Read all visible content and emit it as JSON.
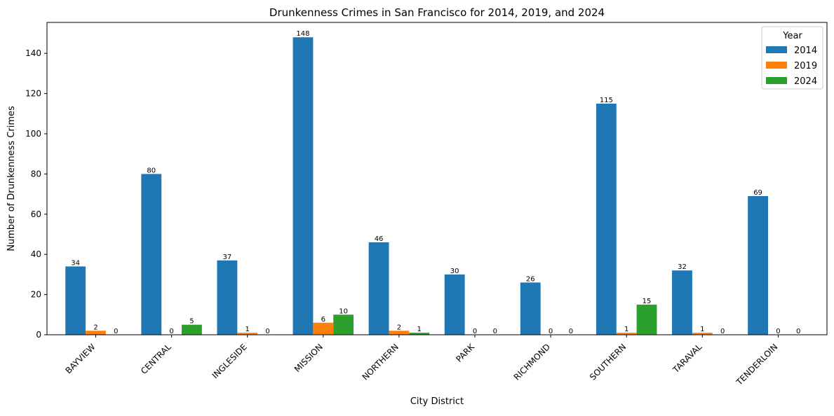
{
  "chart_data": {
    "type": "bar",
    "title": "Drunkenness Crimes in San Francisco for 2014, 2019, and 2024",
    "xlabel": "City District",
    "ylabel": "Number of Drunkenness Crimes",
    "ylim": [
      0,
      155.4
    ],
    "yticks": [
      0,
      20,
      40,
      60,
      80,
      100,
      120,
      140
    ],
    "categories": [
      "BAYVIEW",
      "CENTRAL",
      "INGLESIDE",
      "MISSION",
      "NORTHERN",
      "PARK",
      "RICHMOND",
      "SOUTHERN",
      "TARAVAL",
      "TENDERLOIN"
    ],
    "legend": {
      "title": "Year",
      "placement": "top-right"
    },
    "grid": false,
    "series": [
      {
        "name": "2014",
        "color": "#1f77b4",
        "values": [
          34,
          80,
          37,
          148,
          46,
          30,
          26,
          115,
          32,
          69
        ],
        "labels": [
          "34",
          "80",
          "37",
          "148",
          "46",
          "30",
          "26",
          "115",
          "32",
          "69"
        ]
      },
      {
        "name": "2019",
        "color": "#ff7f0e",
        "values": [
          2,
          0,
          1,
          6,
          2,
          0,
          0,
          1,
          1,
          0
        ],
        "labels": [
          "2",
          "0",
          "1",
          "6",
          "2",
          "0",
          "0",
          "1",
          "1",
          "0"
        ]
      },
      {
        "name": "2024",
        "color": "#2ca02c",
        "values": [
          0,
          5,
          0,
          10,
          1,
          0,
          0,
          15,
          0,
          0
        ],
        "labels": [
          "0",
          "5",
          "0",
          "10",
          "1",
          "0",
          "0",
          "15",
          "0",
          "0"
        ]
      }
    ]
  }
}
